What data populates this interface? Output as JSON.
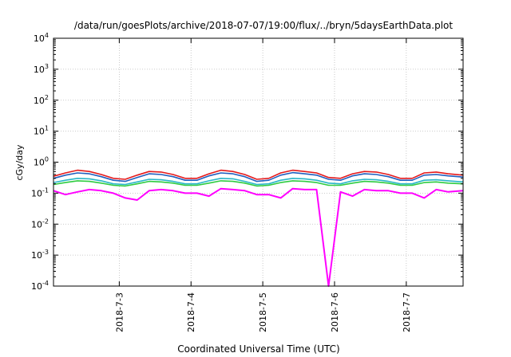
{
  "chart_data": {
    "type": "line",
    "title": "/data/run/goesPlots/archive/2018-07-07/19:00/flux/../bryn/5daysEarthData.plot",
    "xlabel": "Coordinated Universal Time (UTC)",
    "ylabel": "cGy/day",
    "yscale": "log",
    "ylim": [
      0.0001,
      10000
    ],
    "xlim": [
      "2018-07-02 02:00",
      "2018-07-07 19:00"
    ],
    "grid": true,
    "legend": "none",
    "y_ticks": [
      {
        "base": "10",
        "exp": "-4",
        "value": 0.0001
      },
      {
        "base": "10",
        "exp": "-3",
        "value": 0.001
      },
      {
        "base": "10",
        "exp": "-2",
        "value": 0.01
      },
      {
        "base": "10",
        "exp": "-1",
        "value": 0.1
      },
      {
        "base": "10",
        "exp": "0",
        "value": 1
      },
      {
        "base": "10",
        "exp": "1",
        "value": 10
      },
      {
        "base": "10",
        "exp": "2",
        "value": 100
      },
      {
        "base": "10",
        "exp": "3",
        "value": 1000
      },
      {
        "base": "10",
        "exp": "4",
        "value": 10000
      }
    ],
    "x_ticks": [
      {
        "label": "2018-7-3",
        "value": "2018-07-03 00:00"
      },
      {
        "label": "2018-7-4",
        "value": "2018-07-04 00:00"
      },
      {
        "label": "2018-7-5",
        "value": "2018-07-05 00:00"
      },
      {
        "label": "2018-7-6",
        "value": "2018-07-06 00:00"
      },
      {
        "label": "2018-7-7",
        "value": "2018-07-07 00:00"
      }
    ],
    "x": [
      "2018-07-02 02:00",
      "2018-07-02 06:00",
      "2018-07-02 10:00",
      "2018-07-02 14:00",
      "2018-07-02 18:00",
      "2018-07-02 22:00",
      "2018-07-03 02:00",
      "2018-07-03 06:00",
      "2018-07-03 10:00",
      "2018-07-03 14:00",
      "2018-07-03 18:00",
      "2018-07-03 22:00",
      "2018-07-04 02:00",
      "2018-07-04 06:00",
      "2018-07-04 10:00",
      "2018-07-04 14:00",
      "2018-07-04 18:00",
      "2018-07-04 22:00",
      "2018-07-05 02:00",
      "2018-07-05 06:00",
      "2018-07-05 10:00",
      "2018-07-05 14:00",
      "2018-07-05 18:00",
      "2018-07-05 22:00",
      "2018-07-06 02:00",
      "2018-07-06 06:00",
      "2018-07-06 10:00",
      "2018-07-06 14:00",
      "2018-07-06 18:00",
      "2018-07-06 22:00",
      "2018-07-07 02:00",
      "2018-07-07 06:00",
      "2018-07-07 10:00",
      "2018-07-07 14:00",
      "2018-07-07 19:00"
    ],
    "series": [
      {
        "color": "#e41a1c",
        "values": [
          0.35,
          0.45,
          0.55,
          0.5,
          0.4,
          0.3,
          0.28,
          0.38,
          0.5,
          0.48,
          0.4,
          0.3,
          0.3,
          0.42,
          0.55,
          0.5,
          0.4,
          0.28,
          0.3,
          0.45,
          0.55,
          0.5,
          0.45,
          0.32,
          0.3,
          0.42,
          0.5,
          0.48,
          0.4,
          0.3,
          0.3,
          0.45,
          0.48,
          0.42,
          0.38
        ]
      },
      {
        "color": "#1f5fbf",
        "values": [
          0.3,
          0.38,
          0.45,
          0.42,
          0.34,
          0.26,
          0.24,
          0.32,
          0.42,
          0.4,
          0.34,
          0.26,
          0.26,
          0.36,
          0.45,
          0.42,
          0.34,
          0.24,
          0.26,
          0.38,
          0.46,
          0.42,
          0.38,
          0.28,
          0.26,
          0.36,
          0.42,
          0.4,
          0.34,
          0.26,
          0.26,
          0.38,
          0.4,
          0.36,
          0.33
        ]
      },
      {
        "color": "#29b6c8",
        "values": [
          0.22,
          0.26,
          0.3,
          0.29,
          0.25,
          0.2,
          0.19,
          0.23,
          0.28,
          0.27,
          0.24,
          0.2,
          0.2,
          0.25,
          0.3,
          0.29,
          0.24,
          0.19,
          0.2,
          0.26,
          0.3,
          0.29,
          0.26,
          0.21,
          0.2,
          0.25,
          0.28,
          0.27,
          0.24,
          0.2,
          0.2,
          0.26,
          0.27,
          0.25,
          0.23
        ]
      },
      {
        "color": "#2ecc40",
        "values": [
          0.19,
          0.22,
          0.25,
          0.24,
          0.21,
          0.18,
          0.17,
          0.2,
          0.24,
          0.23,
          0.21,
          0.18,
          0.18,
          0.21,
          0.25,
          0.24,
          0.21,
          0.17,
          0.18,
          0.22,
          0.25,
          0.24,
          0.22,
          0.18,
          0.18,
          0.21,
          0.24,
          0.23,
          0.21,
          0.18,
          0.18,
          0.22,
          0.23,
          0.21,
          0.2
        ]
      },
      {
        "color": "#ff00ff",
        "values": [
          0.12,
          0.09,
          0.11,
          0.13,
          0.12,
          0.1,
          0.07,
          0.06,
          0.12,
          0.13,
          0.12,
          0.1,
          0.1,
          0.08,
          0.14,
          0.13,
          0.12,
          0.09,
          0.09,
          0.07,
          0.14,
          0.13,
          0.13,
          0.0001,
          0.11,
          0.08,
          0.13,
          0.12,
          0.12,
          0.1,
          0.1,
          0.07,
          0.13,
          0.11,
          0.12
        ]
      }
    ]
  }
}
